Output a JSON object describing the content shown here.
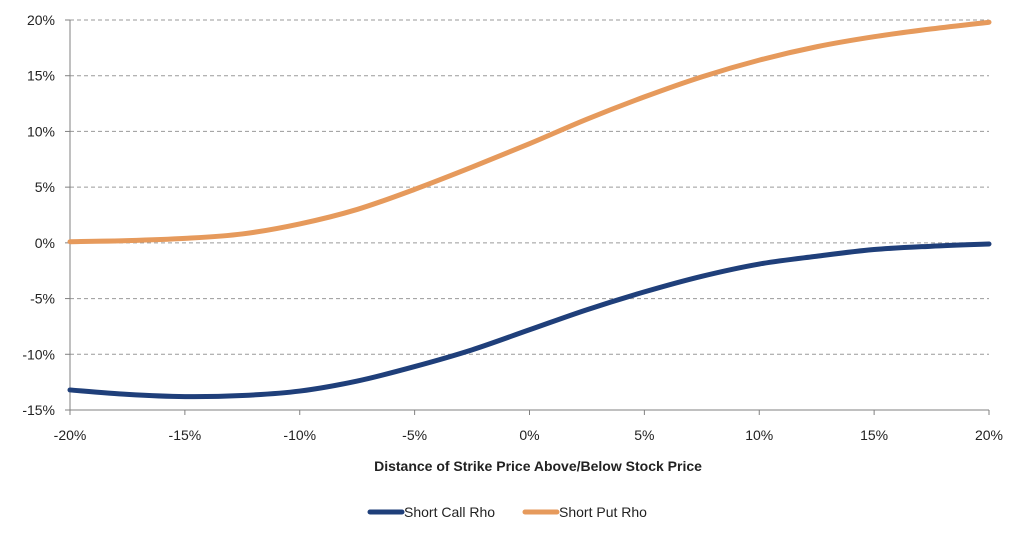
{
  "chart_data": {
    "type": "line",
    "title": "",
    "xlabel": "Distance of Strike Price Above/Below Stock Price",
    "ylabel": "",
    "xlim": [
      -20,
      20
    ],
    "ylim": [
      -15,
      20
    ],
    "x_ticks": [
      -20,
      -15,
      -10,
      -5,
      0,
      5,
      10,
      15,
      20
    ],
    "x_tick_labels": [
      "-20%",
      "-15%",
      "-10%",
      "-5%",
      "0%",
      "5%",
      "10%",
      "15%",
      "20%"
    ],
    "y_ticks": [
      -15,
      -10,
      -5,
      0,
      5,
      10,
      15,
      20
    ],
    "y_tick_labels": [
      "-15%",
      "-10%",
      "-5%",
      "0%",
      "5%",
      "10%",
      "15%",
      "20%"
    ],
    "grid": "horizontal dashed",
    "legend_position": "bottom",
    "x": [
      -20,
      -17.5,
      -15,
      -12.5,
      -10,
      -7.5,
      -5,
      -2.5,
      0,
      2.5,
      5,
      7.5,
      10,
      12.5,
      15,
      17.5,
      20
    ],
    "series": [
      {
        "name": "Short Call Rho",
        "color": "#1F3F7A",
        "values": [
          -13.2,
          -13.6,
          -13.8,
          -13.7,
          -13.3,
          -12.4,
          -11.1,
          -9.6,
          -7.8,
          -6.0,
          -4.4,
          -3.0,
          -1.9,
          -1.2,
          -0.6,
          -0.3,
          -0.1
        ]
      },
      {
        "name": "Short Put Rho",
        "color": "#E69A5C",
        "values": [
          0.1,
          0.2,
          0.4,
          0.8,
          1.7,
          3.0,
          4.8,
          6.8,
          8.9,
          11.1,
          13.1,
          14.9,
          16.4,
          17.6,
          18.5,
          19.2,
          19.8
        ]
      }
    ]
  }
}
